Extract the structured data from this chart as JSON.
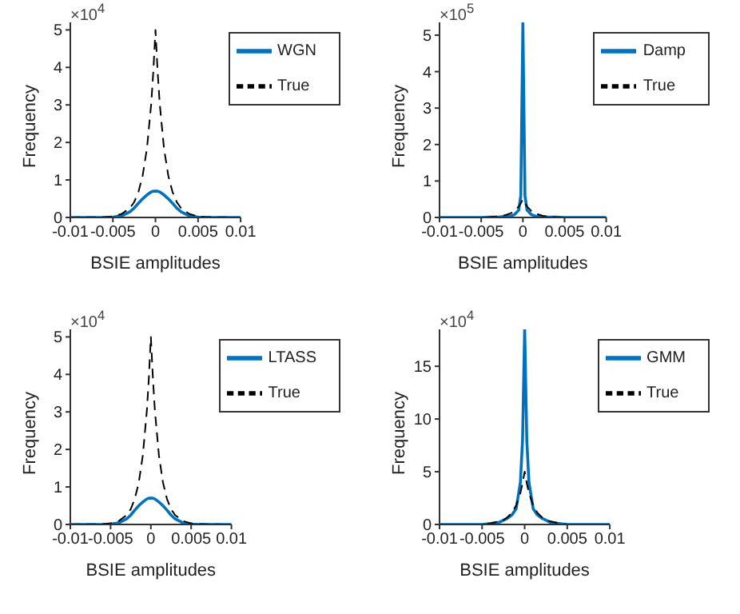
{
  "chart_data": [
    {
      "type": "line",
      "xlabel": "BSIE amplitudes",
      "ylabel": "Frequency",
      "annotations": [
        "×10$^{4}$"
      ],
      "legend": "top right",
      "marker": "none",
      "xlim": [
        -0.01,
        0.01
      ],
      "xticks": [
        -0.01,
        -0.005,
        0,
        0.005,
        0.01
      ],
      "ylim": [
        0,
        5.2
      ],
      "yticks": [
        0,
        1,
        2,
        3,
        4,
        5
      ],
      "x": [
        -0.01,
        -0.006,
        -0.005,
        -0.004,
        -0.003,
        -0.0025,
        -0.002,
        -0.0015,
        -0.001,
        -0.0005,
        -0.00025,
        0,
        0.00025,
        0.0005,
        0.001,
        0.0015,
        0.002,
        0.0025,
        0.003,
        0.004,
        0.005,
        0.006,
        0.01
      ],
      "series": [
        {
          "name": "WGN",
          "color": "#0072bd",
          "line_style": "solid",
          "values": [
            0,
            0,
            0.01,
            0.04,
            0.15,
            0.25,
            0.38,
            0.5,
            0.6,
            0.68,
            0.7,
            0.7,
            0.7,
            0.68,
            0.6,
            0.5,
            0.38,
            0.25,
            0.15,
            0.04,
            0.01,
            0,
            0
          ]
        },
        {
          "name": "True",
          "color": "#000000",
          "line_style": "dashed",
          "values": [
            0,
            0.01,
            0.03,
            0.09,
            0.25,
            0.41,
            0.68,
            1.12,
            1.84,
            3.03,
            3.9,
            5,
            3.9,
            3.03,
            1.84,
            1.12,
            0.68,
            0.41,
            0.25,
            0.09,
            0.03,
            0.01,
            0
          ]
        }
      ]
    },
    {
      "type": "line",
      "xlabel": "BSIE amplitudes",
      "ylabel": "Frequency",
      "annotations": [
        "×10$^{5}$"
      ],
      "legend": "top right",
      "marker": "none",
      "xlim": [
        -0.01,
        0.01
      ],
      "xticks": [
        -0.01,
        -0.005,
        0,
        0.005,
        0.01
      ],
      "ylim": [
        0,
        5.35
      ],
      "yticks": [
        0,
        1,
        2,
        3,
        4,
        5
      ],
      "x": [
        -0.01,
        -0.006,
        -0.005,
        -0.004,
        -0.003,
        -0.0025,
        -0.002,
        -0.0015,
        -0.001,
        -0.0005,
        -0.00025,
        0,
        0.00025,
        0.0005,
        0.001,
        0.0015,
        0.002,
        0.0025,
        0.003,
        0.004,
        0.005,
        0.006,
        0.01
      ],
      "series": [
        {
          "name": "Damp",
          "color": "#0072bd",
          "line_style": "solid",
          "values": [
            0,
            0,
            0,
            0.01,
            0.01,
            0.02,
            0.02,
            0.04,
            0.08,
            0.2,
            0.6,
            5.35,
            0.6,
            0.2,
            0.08,
            0.04,
            0.02,
            0.02,
            0.01,
            0.01,
            0,
            0,
            0
          ]
        },
        {
          "name": "True",
          "color": "#000000",
          "line_style": "dashed",
          "values": [
            0,
            0,
            0,
            0.01,
            0.03,
            0.04,
            0.07,
            0.11,
            0.18,
            0.3,
            0.39,
            0.5,
            0.39,
            0.3,
            0.18,
            0.11,
            0.07,
            0.04,
            0.03,
            0.01,
            0,
            0,
            0
          ]
        }
      ]
    },
    {
      "type": "line",
      "xlabel": "BSIE amplitudes",
      "ylabel": "Frequency",
      "annotations": [
        "×10$^{4}$"
      ],
      "legend": "top right",
      "marker": "none",
      "xlim": [
        -0.01,
        0.01
      ],
      "xticks": [
        -0.01,
        -0.005,
        0,
        0.005,
        0.01
      ],
      "ylim": [
        0,
        5.2
      ],
      "yticks": [
        0,
        1,
        2,
        3,
        4,
        5
      ],
      "x": [
        -0.01,
        -0.006,
        -0.005,
        -0.004,
        -0.003,
        -0.0025,
        -0.002,
        -0.0015,
        -0.001,
        -0.0005,
        -0.00025,
        0,
        0.00025,
        0.0005,
        0.001,
        0.0015,
        0.002,
        0.0025,
        0.003,
        0.004,
        0.005,
        0.006,
        0.01
      ],
      "series": [
        {
          "name": "LTASS",
          "color": "#0072bd",
          "line_style": "solid",
          "values": [
            0,
            0,
            0.01,
            0.04,
            0.15,
            0.25,
            0.38,
            0.5,
            0.6,
            0.68,
            0.7,
            0.7,
            0.7,
            0.68,
            0.6,
            0.5,
            0.38,
            0.25,
            0.15,
            0.04,
            0.01,
            0,
            0
          ]
        },
        {
          "name": "True",
          "color": "#000000",
          "line_style": "dashed",
          "values": [
            0,
            0.01,
            0.03,
            0.09,
            0.25,
            0.41,
            0.68,
            1.12,
            1.84,
            3.03,
            3.9,
            5,
            3.9,
            3.03,
            1.84,
            1.12,
            0.68,
            0.41,
            0.25,
            0.09,
            0.03,
            0.01,
            0
          ]
        }
      ]
    },
    {
      "type": "line",
      "xlabel": "BSIE amplitudes",
      "ylabel": "Frequency",
      "annotations": [
        "×10$^{4}$"
      ],
      "legend": "top right",
      "marker": "none",
      "xlim": [
        -0.01,
        0.01
      ],
      "xticks": [
        -0.01,
        -0.005,
        0,
        0.005,
        0.01
      ],
      "ylim": [
        0,
        18.5
      ],
      "yticks": [
        0,
        5,
        10,
        15
      ],
      "x": [
        -0.01,
        -0.006,
        -0.005,
        -0.004,
        -0.003,
        -0.0025,
        -0.002,
        -0.0015,
        -0.001,
        -0.0005,
        -0.00025,
        0,
        0.00025,
        0.0005,
        0.001,
        0.0015,
        0.002,
        0.0025,
        0.003,
        0.004,
        0.005,
        0.006,
        0.01
      ],
      "series": [
        {
          "name": "GMM",
          "color": "#0072bd",
          "line_style": "solid",
          "values": [
            0,
            0,
            0,
            0.1,
            0.2,
            0.4,
            0.6,
            0.9,
            1.5,
            4,
            8,
            18.5,
            8,
            4,
            1.5,
            0.9,
            0.6,
            0.4,
            0.2,
            0.1,
            0,
            0,
            0
          ]
        },
        {
          "name": "True",
          "color": "#000000",
          "line_style": "dashed",
          "values": [
            0,
            0,
            0,
            0.1,
            0.3,
            0.4,
            0.7,
            1.1,
            1.8,
            3,
            3.9,
            5,
            3.9,
            3,
            1.8,
            1.1,
            0.7,
            0.4,
            0.3,
            0.1,
            0,
            0,
            0
          ]
        }
      ]
    }
  ]
}
